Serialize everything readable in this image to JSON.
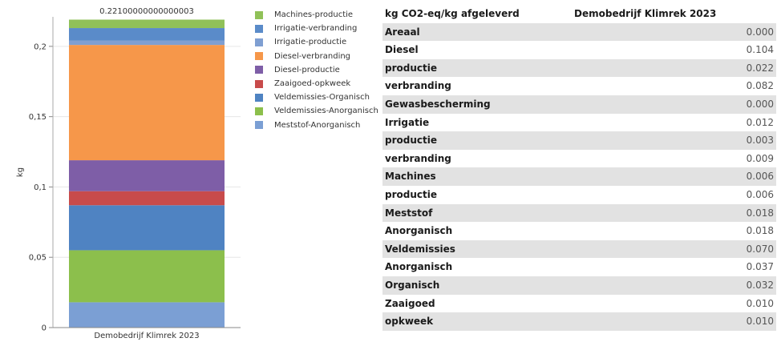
{
  "chart_data": {
    "type": "bar",
    "stacked": true,
    "categories": [
      "Demobedrijf Klimrek 2023"
    ],
    "total_label": "0.22100000000000003",
    "ylabel": "kg",
    "ylim": [
      0,
      0.221
    ],
    "yticks": [
      "0",
      "0,05",
      "0,1",
      "0,15",
      "0,2"
    ],
    "ytick_values": [
      0,
      0.05,
      0.1,
      0.15,
      0.2
    ],
    "legend_position": "right",
    "series": [
      {
        "name": "Meststof-Anorganisch",
        "values": [
          0.018
        ],
        "color": "#7b9fd4"
      },
      {
        "name": "Veldemissies-Anorganisch",
        "values": [
          0.037
        ],
        "color": "#8cbf4c"
      },
      {
        "name": "Veldemissies-Organisch",
        "values": [
          0.032
        ],
        "color": "#4f83c2"
      },
      {
        "name": "Zaaigoed-opkweek",
        "values": [
          0.01
        ],
        "color": "#c84b4b"
      },
      {
        "name": "Diesel-productie",
        "values": [
          0.022
        ],
        "color": "#7e5ea7"
      },
      {
        "name": "Diesel-verbranding",
        "values": [
          0.082
        ],
        "color": "#f6974a"
      },
      {
        "name": "Irrigatie-productie",
        "values": [
          0.003
        ],
        "color": "#7f9fd2"
      },
      {
        "name": "Irrigatie-verbranding",
        "values": [
          0.009
        ],
        "color": "#5a8bc9"
      },
      {
        "name": "Machines-productie",
        "values": [
          0.006
        ],
        "color": "#90c158"
      }
    ]
  },
  "legend_items": [
    {
      "name": "Machines-productie",
      "color": "#90c158"
    },
    {
      "name": "Irrigatie-verbranding",
      "color": "#5a8bc9"
    },
    {
      "name": "Irrigatie-productie",
      "color": "#7f9fd2"
    },
    {
      "name": "Diesel-verbranding",
      "color": "#f6974a"
    },
    {
      "name": "Diesel-productie",
      "color": "#7e5ea7"
    },
    {
      "name": "Zaaigoed-opkweek",
      "color": "#c84b4b"
    },
    {
      "name": "Veldemissies-Organisch",
      "color": "#4f83c2"
    },
    {
      "name": "Veldemissies-Anorganisch",
      "color": "#8cbf4c"
    },
    {
      "name": "Meststof-Anorganisch",
      "color": "#7b9fd4"
    }
  ],
  "table": {
    "header_label": "kg CO2-eq/kg afgeleverd",
    "header_company": "Demobedrijf Klimrek 2023",
    "rows": [
      {
        "label": "Areaal",
        "value": "0.000"
      },
      {
        "label": "Diesel",
        "value": "0.104"
      },
      {
        "label": "productie",
        "value": "0.022"
      },
      {
        "label": "verbranding",
        "value": "0.082"
      },
      {
        "label": "Gewasbescherming",
        "value": "0.000"
      },
      {
        "label": "Irrigatie",
        "value": "0.012"
      },
      {
        "label": "productie",
        "value": "0.003"
      },
      {
        "label": "verbranding",
        "value": "0.009"
      },
      {
        "label": "Machines",
        "value": "0.006"
      },
      {
        "label": "productie",
        "value": "0.006"
      },
      {
        "label": "Meststof",
        "value": "0.018"
      },
      {
        "label": "Anorganisch",
        "value": "0.018"
      },
      {
        "label": "Veldemissies",
        "value": "0.070"
      },
      {
        "label": "Anorganisch",
        "value": "0.037"
      },
      {
        "label": "Organisch",
        "value": "0.032"
      },
      {
        "label": "Zaaigoed",
        "value": "0.010"
      },
      {
        "label": "opkweek",
        "value": "0.010"
      }
    ]
  }
}
